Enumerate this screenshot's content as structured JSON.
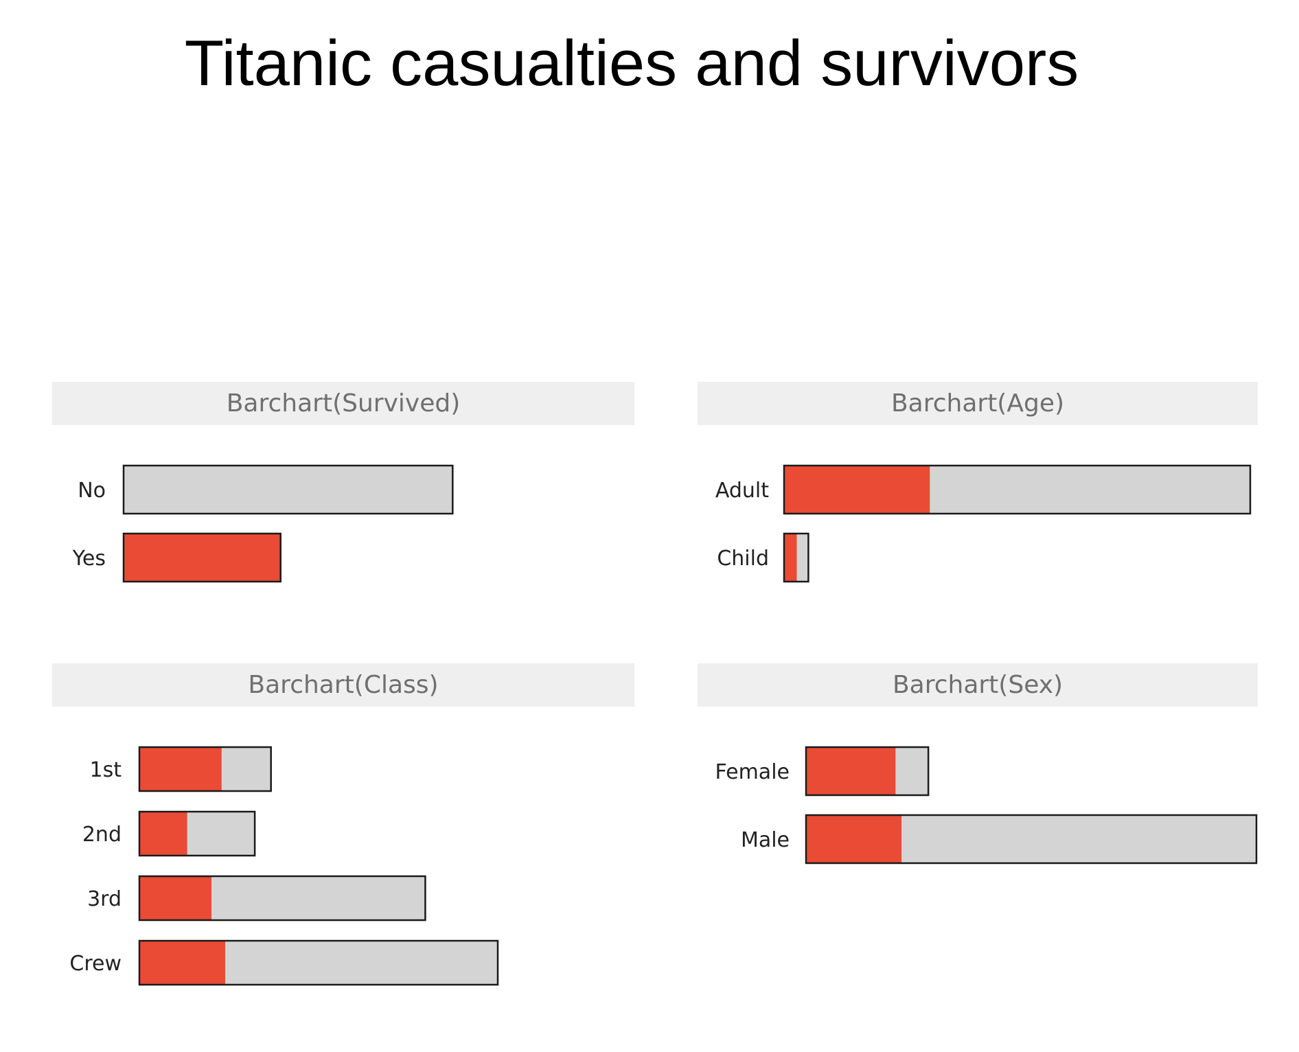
{
  "title": "Titanic casualties and survivors",
  "colors": {
    "survived": "#e94b35",
    "total": "#d4d4d4",
    "outline": "#1a1a1a",
    "header_bg": "#efefef",
    "header_text": "#6f6f6f"
  },
  "chart_data": [
    {
      "type": "bar",
      "orientation": "horizontal",
      "stacked": true,
      "title": "Barchart(Survived)",
      "categories": [
        "No",
        "Yes"
      ],
      "series": [
        {
          "values": [
            0,
            711
          ]
        },
        {
          "values": [
            1490,
            0
          ]
        }
      ]
    },
    {
      "type": "bar",
      "orientation": "horizontal",
      "stacked": true,
      "title": "Barchart(Age)",
      "categories": [
        "Adult",
        "Child"
      ],
      "series": [
        {
          "values": [
            654,
            57
          ]
        },
        {
          "values": [
            1438,
            52
          ]
        }
      ]
    },
    {
      "type": "bar",
      "orientation": "horizontal",
      "stacked": true,
      "title": "Barchart(Class)",
      "categories": [
        "1st",
        "2nd",
        "3rd",
        "Crew"
      ],
      "series": [
        {
          "values": [
            203,
            118,
            178,
            212
          ]
        },
        {
          "values": [
            122,
            167,
            528,
            673
          ]
        }
      ]
    },
    {
      "type": "bar",
      "orientation": "horizontal",
      "stacked": true,
      "title": "Barchart(Sex)",
      "categories": [
        "Female",
        "Male"
      ],
      "series": [
        {
          "values": [
            344,
            367
          ]
        },
        {
          "values": [
            126,
            1364
          ]
        }
      ]
    }
  ]
}
